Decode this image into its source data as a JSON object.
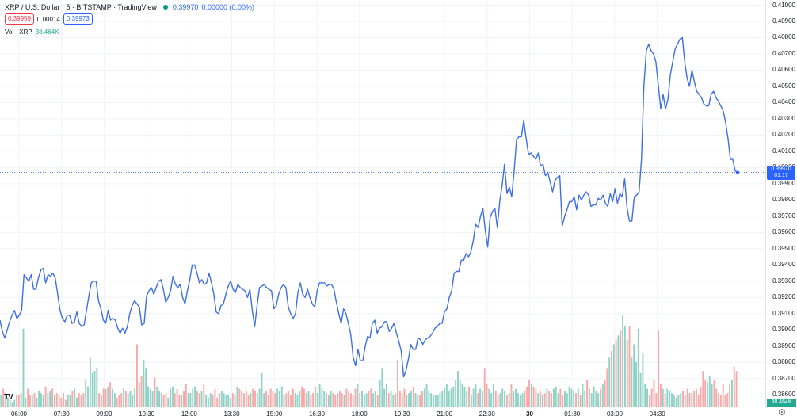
{
  "legend": {
    "symbol_title": "XRP / U.S. Dollar · 5 · BITSTAMP · TradingView",
    "last_price": "0.39970",
    "change": "0.00000 (0.00%)",
    "bid": "0.39959",
    "spread": "0.00014",
    "ask": "0.39973",
    "volume_label": "Vol · XRP",
    "volume_value": "38.464K"
  },
  "price_axis": {
    "ticks": [
      "0.41000",
      "0.40900",
      "0.40800",
      "0.40700",
      "0.40600",
      "0.40500",
      "0.40400",
      "0.40300",
      "0.40200",
      "0.40100",
      "0.40000",
      "0.39900",
      "0.39800",
      "0.39700",
      "0.39600",
      "0.39500",
      "0.39400",
      "0.39300",
      "0.39200",
      "0.39100",
      "0.39000",
      "0.38900",
      "0.38800",
      "0.38700",
      "0.38600"
    ],
    "current_label_price": "0.39970",
    "current_label_countdown": "01:17",
    "volume_label": "38.464K"
  },
  "time_axis": {
    "ticks": [
      {
        "label": "06:00",
        "bold": false,
        "i": 5
      },
      {
        "label": "07:30",
        "bold": false,
        "i": 23
      },
      {
        "label": "09:00",
        "bold": false,
        "i": 41
      },
      {
        "label": "10:30",
        "bold": false,
        "i": 59
      },
      {
        "label": "12:00",
        "bold": false,
        "i": 77
      },
      {
        "label": "13:30",
        "bold": false,
        "i": 95
      },
      {
        "label": "15:00",
        "bold": false,
        "i": 113
      },
      {
        "label": "16:30",
        "bold": false,
        "i": 131
      },
      {
        "label": "18:00",
        "bold": false,
        "i": 149
      },
      {
        "label": "19:30",
        "bold": false,
        "i": 167
      },
      {
        "label": "21:00",
        "bold": false,
        "i": 185
      },
      {
        "label": "22:30",
        "bold": false,
        "i": 203
      },
      {
        "label": "30",
        "bold": true,
        "i": 221
      },
      {
        "label": "01:30",
        "bold": false,
        "i": 239
      },
      {
        "label": "03:00",
        "bold": false,
        "i": 257
      },
      {
        "label": "04:30",
        "bold": false,
        "i": 275
      }
    ]
  },
  "colors": {
    "line": "#3e6fe4",
    "up": "#22ab94",
    "down": "#f7a5a5",
    "accent": "#2962ff"
  },
  "icons": {
    "settings": "gear-icon",
    "logo": "tradingview-logo"
  },
  "chart_data": {
    "type": "line",
    "symbol": "XRP / U.S. Dollar",
    "interval": "5",
    "ylim": [
      0.3855,
      0.41
    ],
    "last_price": 0.3997,
    "price": [
      0.3906,
      0.3899,
      0.3895,
      0.39,
      0.3905,
      0.3909,
      0.3912,
      0.3907,
      0.3909,
      0.3912,
      0.3934,
      0.3932,
      0.393,
      0.3934,
      0.3925,
      0.3925,
      0.3932,
      0.3937,
      0.3938,
      0.3929,
      0.3934,
      0.3933,
      0.3935,
      0.3932,
      0.3922,
      0.3912,
      0.3907,
      0.3905,
      0.3909,
      0.3909,
      0.3904,
      0.3905,
      0.3911,
      0.3904,
      0.3902,
      0.3903,
      0.3912,
      0.3921,
      0.3929,
      0.393,
      0.393,
      0.3918,
      0.3913,
      0.3906,
      0.3904,
      0.3912,
      0.3906,
      0.3907,
      0.3906,
      0.3901,
      0.3898,
      0.3901,
      0.3898,
      0.3902,
      0.391,
      0.3915,
      0.3918,
      0.3916,
      0.3914,
      0.3903,
      0.3904,
      0.3921,
      0.3924,
      0.3926,
      0.3922,
      0.3926,
      0.393,
      0.3931,
      0.3925,
      0.3917,
      0.392,
      0.3924,
      0.3933,
      0.3928,
      0.3926,
      0.3928,
      0.392,
      0.3916,
      0.3924,
      0.3931,
      0.394,
      0.394,
      0.3935,
      0.3929,
      0.3931,
      0.3928,
      0.3929,
      0.3935,
      0.3929,
      0.3922,
      0.3911,
      0.391,
      0.3915,
      0.3916,
      0.3922,
      0.3927,
      0.393,
      0.3925,
      0.3923,
      0.3928,
      0.3926,
      0.3925,
      0.3924,
      0.392,
      0.3925,
      0.3912,
      0.3902,
      0.3915,
      0.3926,
      0.3927,
      0.3928,
      0.3926,
      0.3925,
      0.3924,
      0.3913,
      0.3915,
      0.3922,
      0.3926,
      0.3928,
      0.3926,
      0.3914,
      0.391,
      0.3907,
      0.391,
      0.3923,
      0.3929,
      0.3922,
      0.392,
      0.3925,
      0.392,
      0.3916,
      0.3914,
      0.3924,
      0.3929,
      0.3929,
      0.3929,
      0.3927,
      0.3928,
      0.3928,
      0.3925,
      0.3917,
      0.391,
      0.3904,
      0.3913,
      0.391,
      0.3904,
      0.3897,
      0.3883,
      0.3878,
      0.3888,
      0.3881,
      0.3881,
      0.389,
      0.3896,
      0.3895,
      0.3904,
      0.3906,
      0.3898,
      0.3901,
      0.3902,
      0.3905,
      0.3905,
      0.3899,
      0.3901,
      0.3904,
      0.3898,
      0.3893,
      0.3887,
      0.3871,
      0.3875,
      0.3882,
      0.3891,
      0.3888,
      0.3888,
      0.3895,
      0.3894,
      0.3891,
      0.3894,
      0.3895,
      0.3896,
      0.3898,
      0.3901,
      0.3902,
      0.3904,
      0.3904,
      0.3911,
      0.3913,
      0.392,
      0.3924,
      0.3935,
      0.3936,
      0.3936,
      0.3943,
      0.3943,
      0.3947,
      0.3945,
      0.3948,
      0.3955,
      0.3965,
      0.3963,
      0.397,
      0.3975,
      0.3961,
      0.3951,
      0.3969,
      0.3973,
      0.3975,
      0.3963,
      0.3979,
      0.3989,
      0.4002,
      0.3984,
      0.3988,
      0.3982,
      0.3998,
      0.4017,
      0.4019,
      0.4019,
      0.4029,
      0.4018,
      0.4008,
      0.4009,
      0.4007,
      0.4005,
      0.4009,
      0.4001,
      0.4002,
      0.3995,
      0.3997,
      0.3991,
      0.3985,
      0.3992,
      0.3994,
      0.3995,
      0.3964,
      0.397,
      0.3974,
      0.3979,
      0.3979,
      0.3982,
      0.3974,
      0.3983,
      0.398,
      0.3983,
      0.3985,
      0.3983,
      0.3976,
      0.3977,
      0.3977,
      0.3981,
      0.398,
      0.3983,
      0.3978,
      0.3976,
      0.3984,
      0.3979,
      0.3987,
      0.3978,
      0.3984,
      0.3982,
      0.3993,
      0.3975,
      0.3967,
      0.3967,
      0.3982,
      0.3983,
      0.3985,
      0.4005,
      0.405,
      0.4072,
      0.4076,
      0.4072,
      0.407,
      0.4065,
      0.4051,
      0.4036,
      0.4045,
      0.4036,
      0.4042,
      0.4057,
      0.4065,
      0.4073,
      0.4076,
      0.4079,
      0.408,
      0.4065,
      0.4055,
      0.405,
      0.406,
      0.4053,
      0.4047,
      0.4045,
      0.4043,
      0.4039,
      0.4038,
      0.4038,
      0.4045,
      0.4047,
      0.4043,
      0.4041,
      0.4038,
      0.4035,
      0.4028,
      0.4018,
      0.4005,
      0.4005,
      0.3998,
      0.3997
    ],
    "volume": [
      0.05,
      0.08,
      0.06,
      0.04,
      0.03,
      0.02,
      0.03,
      0.05,
      0.05,
      0.06,
      0.35,
      0.04,
      0.08,
      0.05,
      0.05,
      0.06,
      0.04,
      0.07,
      0.06,
      0.05,
      0.09,
      0.06,
      0.07,
      0.08,
      0.05,
      0.06,
      0.05,
      0.04,
      0.06,
      0.03,
      0.05,
      0.05,
      0.07,
      0.08,
      0.04,
      0.06,
      0.05,
      0.06,
      0.12,
      0.09,
      0.22,
      0.15,
      0.16,
      0.17,
      0.06,
      0.05,
      0.08,
      0.08,
      0.09,
      0.11,
      0.08,
      0.06,
      0.04,
      0.05,
      0.06,
      0.08,
      0.07,
      0.06,
      0.07,
      0.05,
      0.08,
      0.28,
      0.11,
      0.14,
      0.21,
      0.17,
      0.09,
      0.08,
      0.07,
      0.13,
      0.09,
      0.07,
      0.06,
      0.05,
      0.06,
      0.04,
      0.08,
      0.09,
      0.06,
      0.08,
      0.05,
      0.05,
      0.07,
      0.1,
      0.06,
      0.06,
      0.08,
      0.09,
      0.07,
      0.06,
      0.07,
      0.1,
      0.05,
      0.04,
      0.06,
      0.05,
      0.08,
      0.04,
      0.06,
      0.07,
      0.06,
      0.05,
      0.05,
      0.04,
      0.06,
      0.05,
      0.09,
      0.08,
      0.07,
      0.06,
      0.07,
      0.05,
      0.06,
      0.08,
      0.07,
      0.06,
      0.08,
      0.15,
      0.06,
      0.07,
      0.05,
      0.08,
      0.07,
      0.06,
      0.08,
      0.07,
      0.09,
      0.05,
      0.06,
      0.07,
      0.05,
      0.08,
      0.06,
      0.05,
      0.07,
      0.09,
      0.08,
      0.06,
      0.07,
      0.05,
      0.06,
      0.09,
      0.06,
      0.1,
      0.08,
      0.07,
      0.06,
      0.05,
      0.07,
      0.06,
      0.05,
      0.06,
      0.07,
      0.06,
      0.05,
      0.08,
      0.07,
      0.06,
      0.05,
      0.08,
      0.1,
      0.06,
      0.07,
      0.05,
      0.06,
      0.07,
      0.08,
      0.06,
      0.07,
      0.05,
      0.12,
      0.17,
      0.08,
      0.1,
      0.06,
      0.07,
      0.05,
      0.06,
      0.21,
      0.07,
      0.06,
      0.08,
      0.05,
      0.06,
      0.07,
      0.09,
      0.06,
      0.05,
      0.05,
      0.07,
      0.08,
      0.1,
      0.07,
      0.06,
      0.05,
      0.05,
      0.05,
      0.06,
      0.07,
      0.08,
      0.1,
      0.07,
      0.08,
      0.09,
      0.12,
      0.16,
      0.12,
      0.1,
      0.09,
      0.07,
      0.09,
      0.05,
      0.08,
      0.1,
      0.06,
      0.08,
      0.07,
      0.17,
      0.1,
      0.08,
      0.06,
      0.1,
      0.07,
      0.05,
      0.06,
      0.08,
      0.07,
      0.05,
      0.06,
      0.1,
      0.07,
      0.08,
      0.06,
      0.05,
      0.06,
      0.07,
      0.09,
      0.12,
      0.1,
      0.09,
      0.08,
      0.06,
      0.07,
      0.05,
      0.06,
      0.08,
      0.07,
      0.06,
      0.08,
      0.09,
      0.06,
      0.08,
      0.05,
      0.07,
      0.06,
      0.09,
      0.08,
      0.07,
      0.06,
      0.08,
      0.05,
      0.1,
      0.07,
      0.12,
      0.08,
      0.06,
      0.09,
      0.07,
      0.06,
      0.08,
      0.1,
      0.12,
      0.17,
      0.22,
      0.25,
      0.28,
      0.3,
      0.32,
      0.34,
      0.41,
      0.36,
      0.3,
      0.36,
      0.22,
      0.28,
      0.2,
      0.35,
      0.15,
      0.24,
      0.1,
      0.08,
      0.05,
      0.08,
      0.12,
      0.06,
      0.34,
      0.1,
      0.08,
      0.06,
      0.08,
      0.07,
      0.06,
      0.05,
      0.04,
      0.05,
      0.06,
      0.07,
      0.05,
      0.08,
      0.06,
      0.06,
      0.07,
      0.08,
      0.05,
      0.09,
      0.16,
      0.12,
      0.11,
      0.14,
      0.1,
      0.12,
      0.08,
      0.06,
      0.05,
      0.1,
      0.05,
      0.06,
      0.1,
      0.12,
      0.18,
      0.16
    ],
    "volume_up": []
  }
}
